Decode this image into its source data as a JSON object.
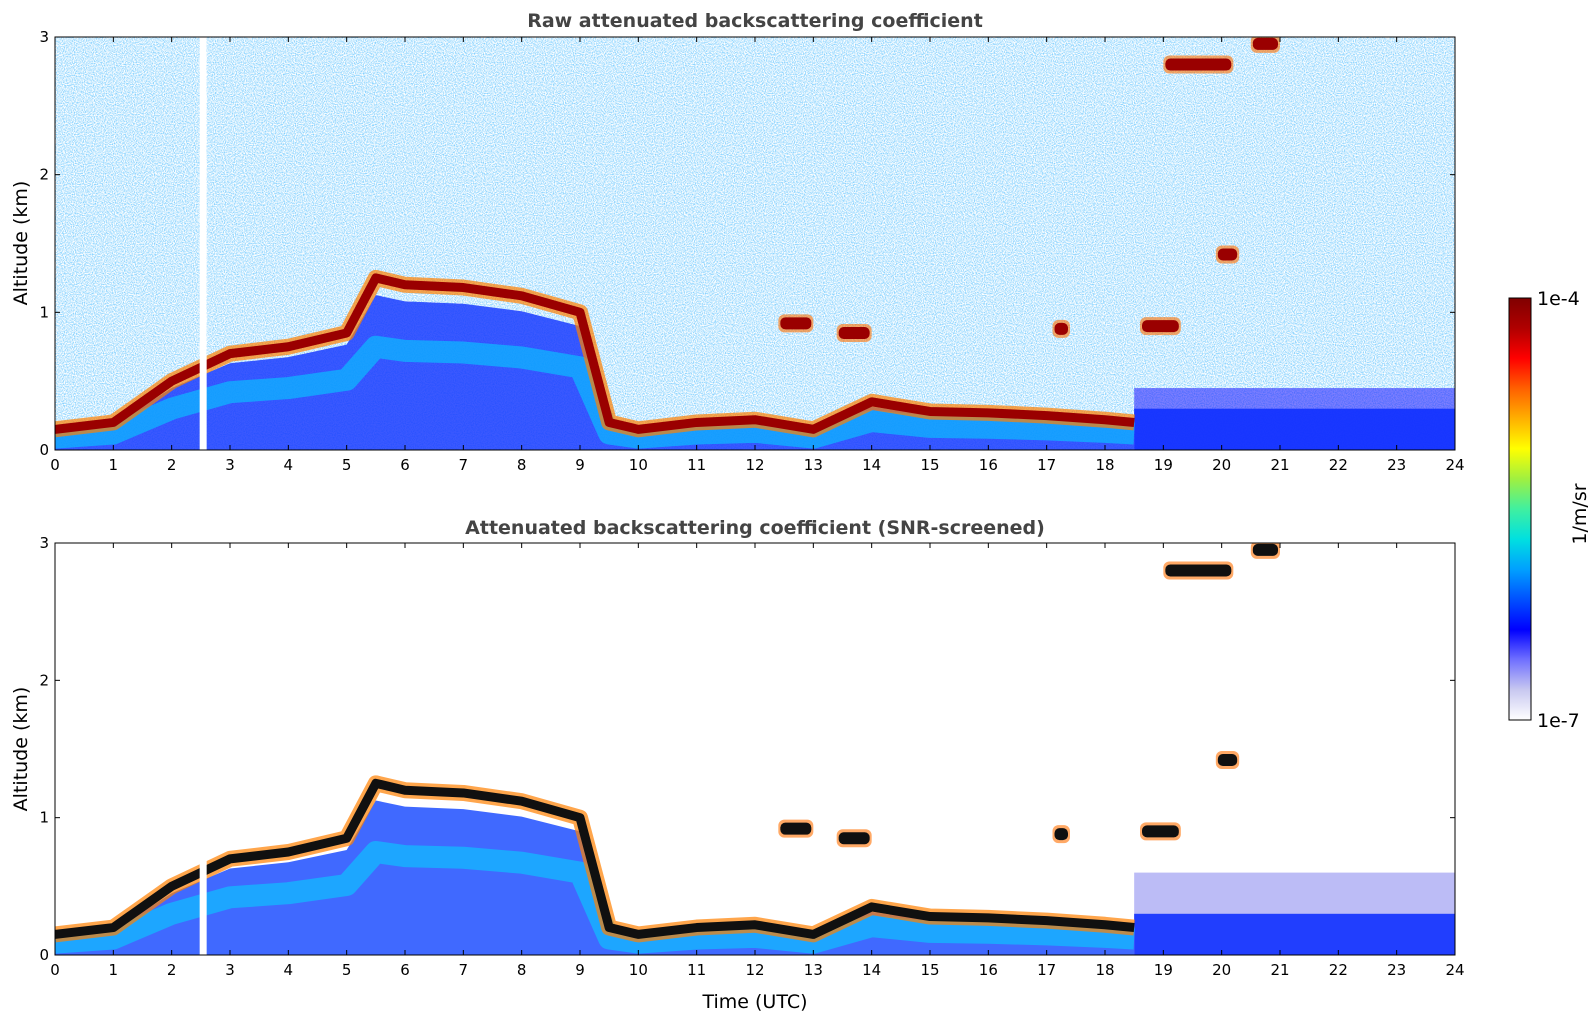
{
  "chart_data": [
    {
      "type": "heatmap",
      "title": "Raw attenuated backscattering coefficient",
      "xlabel": "",
      "ylabel": "Altitude (km)",
      "xlim": [
        0,
        24
      ],
      "ylim": [
        0,
        3
      ],
      "xticks": [
        "0",
        "1",
        "2",
        "3",
        "4",
        "5",
        "6",
        "7",
        "8",
        "9",
        "10",
        "11",
        "12",
        "13",
        "14",
        "15",
        "16",
        "17",
        "18",
        "19",
        "20",
        "21",
        "22",
        "23",
        "24"
      ],
      "yticks": [
        "0",
        "1",
        "2",
        "3"
      ],
      "layer_top_km": {
        "time_utc": [
          0,
          1,
          2,
          3,
          4,
          5,
          5.5,
          6,
          7,
          8,
          9,
          9.5,
          10,
          11,
          12,
          13,
          14,
          15,
          16,
          17,
          18,
          18.5
        ],
        "altitude_km": [
          0.15,
          0.2,
          0.5,
          0.7,
          0.75,
          0.85,
          1.25,
          1.2,
          1.18,
          1.12,
          1.0,
          0.2,
          0.15,
          0.2,
          0.22,
          0.15,
          0.35,
          0.28,
          0.27,
          0.25,
          0.22,
          0.2
        ]
      },
      "elevated_clouds": [
        {
          "time_utc": [
            19,
            20.2
          ],
          "altitude_km": 2.8
        },
        {
          "time_utc": [
            20.5,
            21.0
          ],
          "altitude_km": 2.95
        },
        {
          "time_utc": [
            19.9,
            20.3
          ],
          "altitude_km": 1.42
        },
        {
          "time_utc": [
            18.6,
            19.3
          ],
          "altitude_km": 0.9
        },
        {
          "time_utc": [
            12.4,
            13.0
          ],
          "altitude_km": 0.92
        },
        {
          "time_utc": [
            13.4,
            14.0
          ],
          "altitude_km": 0.85
        },
        {
          "time_utc": [
            17.1,
            17.4
          ],
          "altitude_km": 0.88
        }
      ]
    },
    {
      "type": "heatmap",
      "title": "Attenuated backscattering coefficient (SNR-screened)",
      "xlabel": "Time (UTC)",
      "ylabel": "Altitude (km)",
      "xlim": [
        0,
        24
      ],
      "ylim": [
        0,
        3
      ],
      "xticks": [
        "0",
        "1",
        "2",
        "3",
        "4",
        "5",
        "6",
        "7",
        "8",
        "9",
        "10",
        "11",
        "12",
        "13",
        "14",
        "15",
        "16",
        "17",
        "18",
        "19",
        "20",
        "21",
        "22",
        "23",
        "24"
      ],
      "yticks": [
        "0",
        "1",
        "2",
        "3"
      ]
    }
  ],
  "colorbar": {
    "label": "1/m/sr",
    "max_label": "1e-4",
    "min_label": "1e-7",
    "range": [
      1e-07,
      0.0001
    ],
    "scale": "log",
    "colormap": [
      "#ffffff",
      "#c8c8f0",
      "#7070ff",
      "#0000ff",
      "#0050ff",
      "#00a0ff",
      "#00e0e0",
      "#40f0a0",
      "#a0f040",
      "#ffff00",
      "#ffb000",
      "#ff6000",
      "#ff0000",
      "#b00000",
      "#800000"
    ]
  }
}
